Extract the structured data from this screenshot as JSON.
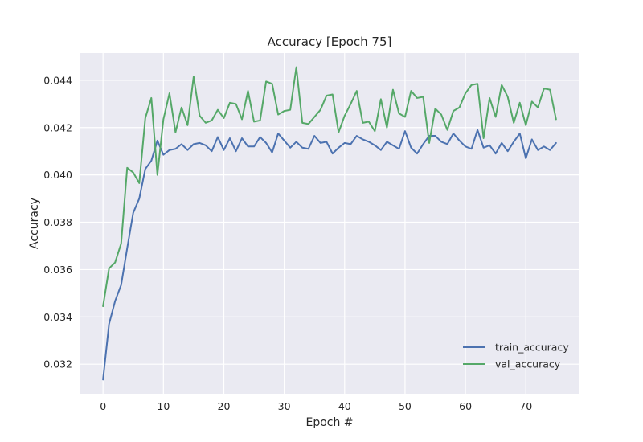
{
  "chart_data": {
    "type": "line",
    "title": "Accuracy [Epoch 75]",
    "xlabel": "Epoch #",
    "ylabel": "Accuracy",
    "xlim": [
      -3.75,
      78.75
    ],
    "ylim": [
      0.03075,
      0.04515
    ],
    "xticks": [
      0,
      10,
      20,
      30,
      40,
      50,
      60,
      70
    ],
    "yticks": [
      0.032,
      0.034,
      0.036,
      0.038,
      0.04,
      0.042,
      0.044
    ],
    "grid": true,
    "legend_position": "lower-right",
    "x": [
      0,
      1,
      2,
      3,
      4,
      5,
      6,
      7,
      8,
      9,
      10,
      11,
      12,
      13,
      14,
      15,
      16,
      17,
      18,
      19,
      20,
      21,
      22,
      23,
      24,
      25,
      26,
      27,
      28,
      29,
      30,
      31,
      32,
      33,
      34,
      35,
      36,
      37,
      38,
      39,
      40,
      41,
      42,
      43,
      44,
      45,
      46,
      47,
      48,
      49,
      50,
      51,
      52,
      53,
      54,
      55,
      56,
      57,
      58,
      59,
      60,
      61,
      62,
      63,
      64,
      65,
      66,
      67,
      68,
      69,
      70,
      71,
      72,
      73,
      74,
      75
    ],
    "series": [
      {
        "name": "train_accuracy",
        "color": "#4c72b0",
        "values": [
          0.03135,
          0.0337,
          0.03467,
          0.03535,
          0.0369,
          0.0384,
          0.039,
          0.04025,
          0.0406,
          0.04145,
          0.04085,
          0.04105,
          0.0411,
          0.0413,
          0.04105,
          0.0413,
          0.04135,
          0.04125,
          0.041,
          0.0416,
          0.04105,
          0.04155,
          0.041,
          0.04155,
          0.0412,
          0.0412,
          0.0416,
          0.04135,
          0.04095,
          0.04175,
          0.04145,
          0.04115,
          0.0414,
          0.04115,
          0.0411,
          0.04165,
          0.04135,
          0.0414,
          0.0409,
          0.04115,
          0.04135,
          0.0413,
          0.04165,
          0.0415,
          0.0414,
          0.04125,
          0.04105,
          0.0414,
          0.04125,
          0.0411,
          0.04185,
          0.04115,
          0.0409,
          0.0413,
          0.04165,
          0.04165,
          0.0414,
          0.0413,
          0.04175,
          0.04145,
          0.0412,
          0.0411,
          0.0419,
          0.04115,
          0.04125,
          0.0409,
          0.04135,
          0.041,
          0.0414,
          0.04175,
          0.0407,
          0.0415,
          0.04105,
          0.0412,
          0.04105,
          0.04135
        ]
      },
      {
        "name": "val_accuracy",
        "color": "#55a868",
        "values": [
          0.03445,
          0.03605,
          0.0363,
          0.0371,
          0.0403,
          0.0401,
          0.03965,
          0.0424,
          0.04325,
          0.04,
          0.04235,
          0.04345,
          0.0418,
          0.04285,
          0.0421,
          0.04415,
          0.0425,
          0.0422,
          0.0423,
          0.04275,
          0.0424,
          0.04305,
          0.043,
          0.04235,
          0.04355,
          0.04225,
          0.0423,
          0.04395,
          0.04385,
          0.04255,
          0.0427,
          0.04275,
          0.04455,
          0.0422,
          0.04215,
          0.04245,
          0.04275,
          0.04335,
          0.0434,
          0.0418,
          0.0425,
          0.043,
          0.04355,
          0.0422,
          0.04225,
          0.04185,
          0.0432,
          0.042,
          0.0436,
          0.0426,
          0.04245,
          0.04355,
          0.04325,
          0.0433,
          0.04135,
          0.0428,
          0.04255,
          0.0419,
          0.0427,
          0.04285,
          0.04345,
          0.0438,
          0.04385,
          0.04155,
          0.04325,
          0.04245,
          0.0438,
          0.0433,
          0.0422,
          0.04305,
          0.0421,
          0.0431,
          0.04285,
          0.04365,
          0.0436,
          0.04235
        ]
      }
    ]
  }
}
